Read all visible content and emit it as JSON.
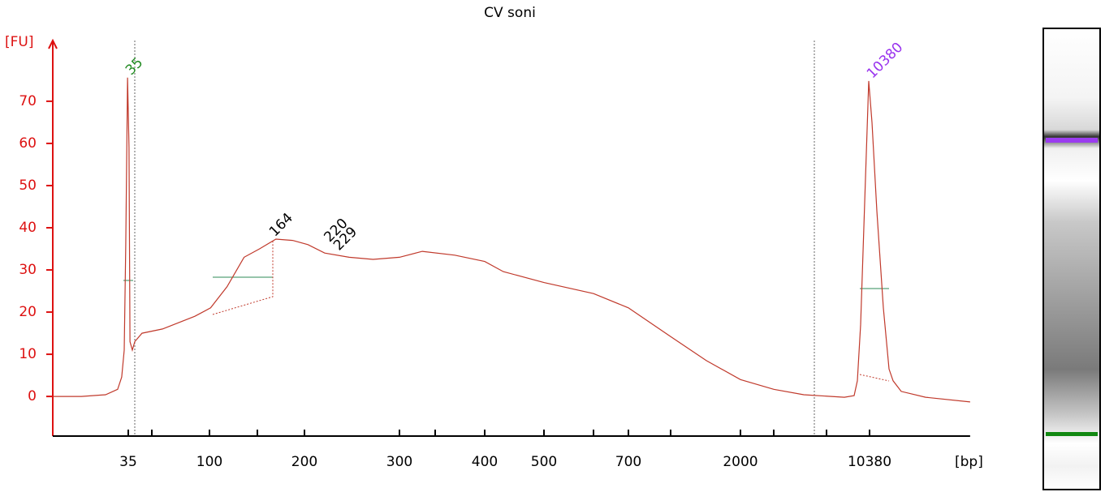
{
  "chart_data": {
    "type": "line",
    "title": "CV soni",
    "ylabel": "[FU]",
    "xlabel": "[bp]",
    "color": "#c0392b",
    "axis_color": "#dd1111",
    "x": [
      11.2,
      17.2,
      24.8,
      29.8,
      31.7,
      32.9,
      33.7,
      34.6,
      35.4,
      35.9,
      37.2,
      38.6,
      43.1,
      56.8,
      83.9,
      101,
      116,
      134,
      152,
      168,
      186,
      203,
      218,
      242,
      268,
      300,
      331,
      369,
      400,
      429,
      500,
      600,
      700,
      1000,
      1426,
      2000,
      4000,
      5500,
      8244,
      9010,
      9283,
      9563,
      9926,
      10305,
      10615,
      11100,
      11780,
      12405,
      12875,
      13870,
      17330,
      26070
    ],
    "values": [
      0,
      0,
      0.4,
      1.7,
      4.6,
      11,
      36,
      75.6,
      59,
      13,
      11,
      13,
      15,
      16,
      19,
      21,
      26,
      33,
      35,
      37.3,
      37,
      36,
      34,
      33,
      32.5,
      33,
      34.4,
      33.5,
      32,
      29.6,
      27,
      24.4,
      21,
      14.2,
      8.5,
      4,
      1.7,
      0.4,
      -0.2,
      0.2,
      3.7,
      17,
      46,
      74.8,
      65,
      44,
      21,
      6.5,
      3.7,
      1.2,
      -0.2,
      -1.3
    ],
    "xlim": [
      11.2,
      26070
    ],
    "ylim": [
      -9.4,
      84.4
    ],
    "yticks": [
      0,
      10,
      20,
      30,
      40,
      50,
      60,
      70
    ],
    "xticks": [
      35,
      {
        "value": 50,
        "label": null
      },
      100,
      {
        "value": 150,
        "label": null
      },
      200,
      300,
      {
        "value": 350,
        "label": null
      },
      400,
      500,
      {
        "value": 600,
        "label": null
      },
      700,
      {
        "value": 1000,
        "label": null
      },
      2000,
      {
        "value": 4000,
        "label": null
      },
      {
        "value": 7000,
        "label": null
      },
      10380
    ],
    "peaks": [
      {
        "size": 35,
        "color": "#228b22"
      },
      {
        "size": 164,
        "color": "#000000"
      },
      {
        "size": 220,
        "color": "#000000"
      },
      {
        "size": 229,
        "color": "#000000"
      },
      {
        "size": 10380,
        "color": "#9933ee"
      }
    ]
  }
}
